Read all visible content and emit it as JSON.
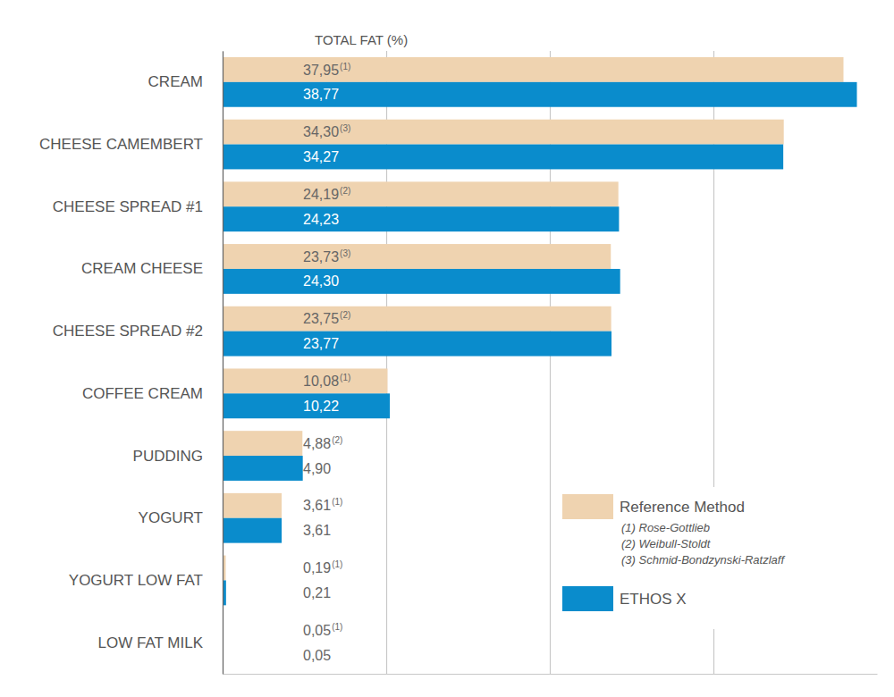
{
  "chart_data": {
    "type": "bar",
    "orientation": "horizontal",
    "title": "TOTAL FAT (%)",
    "categories": [
      "CREAM",
      "CHEESE CAMEMBERT",
      "CHEESE SPREAD #1",
      "CREAM CHEESE",
      "CHEESE SPREAD #2",
      "COFFEE CREAM",
      "PUDDING",
      "YOGURT",
      "YOGURT LOW FAT",
      "LOW FAT MILK"
    ],
    "series": [
      {
        "name": "Reference Method",
        "color": "#efd3b0",
        "values": [
          37.95,
          34.3,
          24.19,
          23.73,
          23.75,
          10.08,
          4.88,
          3.61,
          0.19,
          0.05
        ],
        "value_labels": [
          "37,95",
          "34,30",
          "24,19",
          "23,73",
          "23,75",
          "10,08",
          "4,88",
          "3,61",
          "0,19",
          "0,05"
        ],
        "notes": [
          "(1)",
          "(3)",
          "(2)",
          "(3)",
          "(2)",
          "(1)",
          "(2)",
          "(1)",
          "(1)",
          "(1)"
        ]
      },
      {
        "name": "ETHOS X",
        "color": "#0a8ccc",
        "values": [
          38.77,
          34.27,
          24.23,
          24.3,
          23.77,
          10.22,
          4.9,
          3.61,
          0.21,
          0.05
        ],
        "value_labels": [
          "38,77",
          "34,27",
          "24,23",
          "24,30",
          "23,77",
          "10,22",
          "4,90",
          "3,61",
          "0,21",
          "0,05"
        ]
      }
    ],
    "legend_notes": [
      "(1) Rose-Gottlieb",
      "(2) Weibull-Stoldt",
      "(3) Schmid-Bondzynski-Ratzlaff"
    ],
    "xlim": [
      0,
      40
    ],
    "xticks": [
      0,
      10,
      20,
      30
    ],
    "grid": true,
    "tick_labels": "y",
    "data_labels": true,
    "legend": "lower right"
  }
}
